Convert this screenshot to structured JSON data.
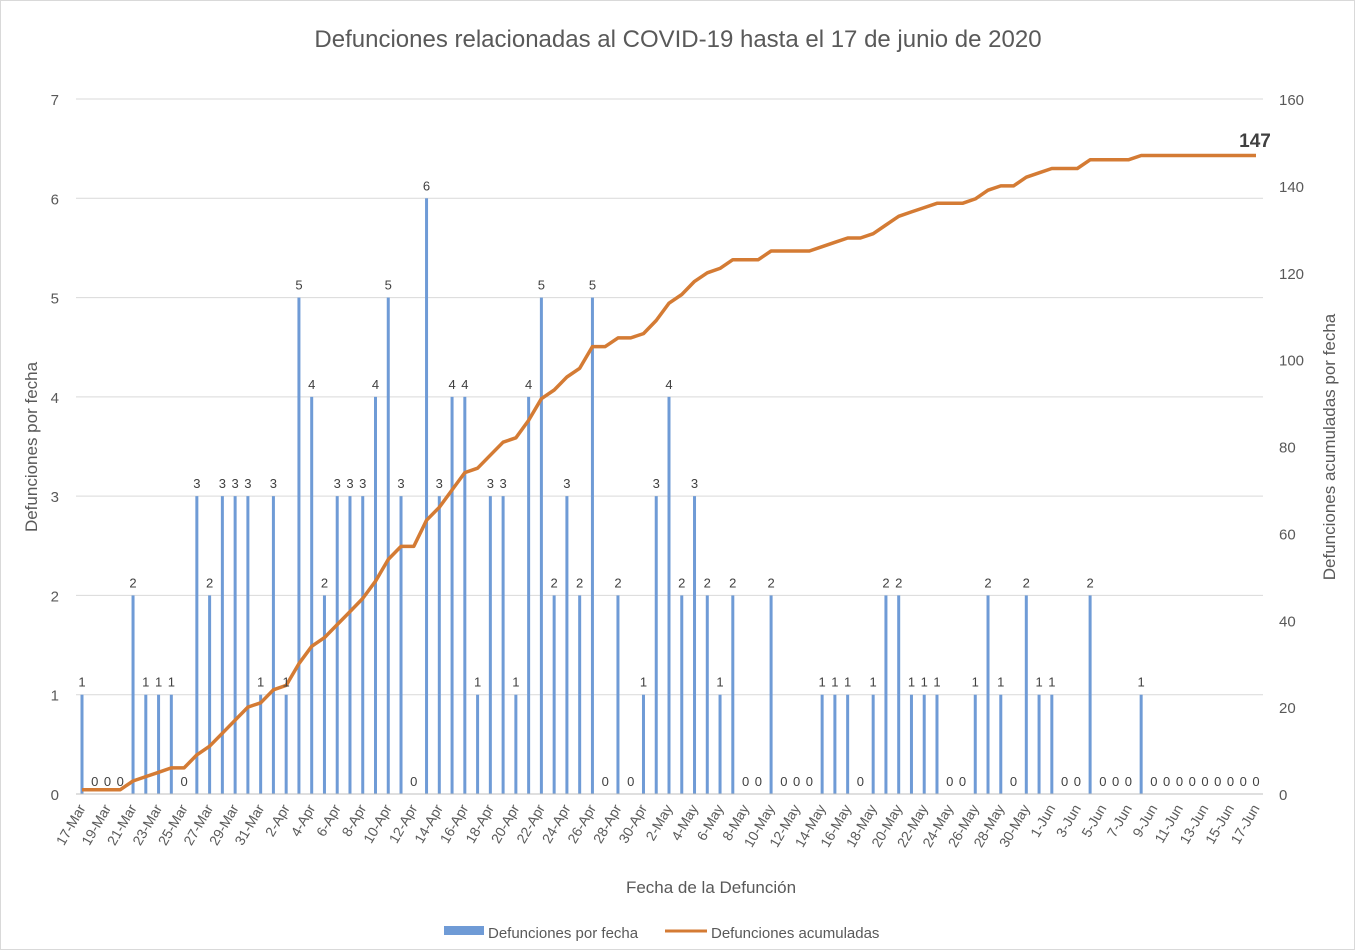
{
  "chart_data": {
    "type": "bar+line",
    "title": "Defunciones relacionadas al COVID-19 hasta el 17 de junio de 2020",
    "xlabel": "Fecha de la Defunción",
    "ylabel": "Defunciones por fecha",
    "y2label": "Defunciones acumuladas por fecha",
    "ylim": [
      0,
      7
    ],
    "y2lim": [
      0,
      160
    ],
    "yticks": [
      "0",
      "1",
      "2",
      "3",
      "4",
      "5",
      "6",
      "7"
    ],
    "y2ticks": [
      "0",
      "20",
      "40",
      "60",
      "80",
      "100",
      "120",
      "140",
      "160"
    ],
    "grid": true,
    "legend_position": "bottom",
    "final_label": "147",
    "x": [
      "17-Mar",
      "18-Mar",
      "19-Mar",
      "20-Mar",
      "21-Mar",
      "22-Mar",
      "23-Mar",
      "24-Mar",
      "25-Mar",
      "26-Mar",
      "27-Mar",
      "28-Mar",
      "29-Mar",
      "30-Mar",
      "31-Mar",
      "1-Apr",
      "2-Apr",
      "3-Apr",
      "4-Apr",
      "5-Apr",
      "6-Apr",
      "7-Apr",
      "8-Apr",
      "9-Apr",
      "10-Apr",
      "11-Apr",
      "12-Apr",
      "13-Apr",
      "14-Apr",
      "15-Apr",
      "16-Apr",
      "17-Apr",
      "18-Apr",
      "19-Apr",
      "20-Apr",
      "21-Apr",
      "22-Apr",
      "23-Apr",
      "24-Apr",
      "25-Apr",
      "26-Apr",
      "27-Apr",
      "28-Apr",
      "29-Apr",
      "30-Apr",
      "1-May",
      "2-May",
      "3-May",
      "4-May",
      "5-May",
      "6-May",
      "7-May",
      "8-May",
      "9-May",
      "10-May",
      "11-May",
      "12-May",
      "13-May",
      "14-May",
      "15-May",
      "16-May",
      "17-May",
      "18-May",
      "19-May",
      "20-May",
      "21-May",
      "22-May",
      "23-May",
      "24-May",
      "25-May",
      "26-May",
      "27-May",
      "28-May",
      "29-May",
      "30-May",
      "31-May",
      "1-Jun",
      "2-Jun",
      "3-Jun",
      "4-Jun",
      "5-Jun",
      "6-Jun",
      "7-Jun",
      "8-Jun",
      "9-Jun",
      "10-Jun",
      "11-Jun",
      "12-Jun",
      "13-Jun",
      "14-Jun",
      "15-Jun",
      "16-Jun",
      "17-Jun"
    ],
    "series": [
      {
        "name": "Defunciones por fecha",
        "type": "bar",
        "color": "#6f9bd6",
        "values": [
          1,
          0,
          0,
          0,
          2,
          1,
          1,
          1,
          0,
          3,
          2,
          3,
          3,
          3,
          1,
          3,
          1,
          5,
          4,
          2,
          3,
          3,
          3,
          4,
          5,
          3,
          0,
          6,
          3,
          4,
          4,
          1,
          3,
          3,
          1,
          4,
          5,
          2,
          3,
          2,
          5,
          0,
          2,
          0,
          1,
          3,
          4,
          2,
          3,
          2,
          1,
          2,
          0,
          0,
          2,
          0,
          0,
          0,
          1,
          1,
          1,
          0,
          1,
          2,
          2,
          1,
          1,
          1,
          0,
          0,
          1,
          2,
          1,
          0,
          2,
          1,
          1,
          0,
          0,
          2,
          0,
          0,
          0,
          1,
          0,
          0,
          0,
          0,
          0,
          0,
          0,
          0,
          0
        ]
      },
      {
        "name": "Defunciones acumuladas",
        "type": "line",
        "color": "#d47b34",
        "axis": "right"
      }
    ]
  }
}
